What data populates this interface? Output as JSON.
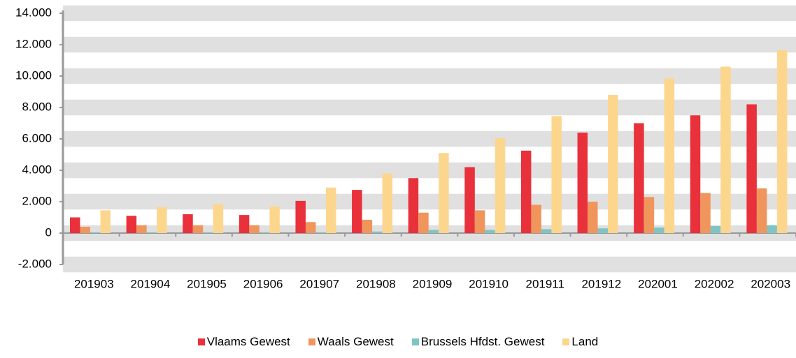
{
  "chart_data": {
    "type": "bar",
    "categories": [
      "201903",
      "201904",
      "201905",
      "201906",
      "201907",
      "201908",
      "201909",
      "201910",
      "201911",
      "201912",
      "202001",
      "202002",
      "202003"
    ],
    "series": [
      {
        "name": "Vlaams Gewest",
        "color": "#e8313a",
        "values": [
          1000,
          1100,
          1200,
          1150,
          2050,
          2750,
          3500,
          4200,
          5250,
          6400,
          7000,
          7500,
          8200
        ]
      },
      {
        "name": "Waals Gewest",
        "color": "#f0955c",
        "values": [
          400,
          500,
          500,
          500,
          700,
          850,
          1300,
          1450,
          1800,
          2000,
          2300,
          2550,
          2850
        ]
      },
      {
        "name": "Brussels Hfdst. Gewest",
        "color": "#7fc4c4",
        "values": [
          50,
          50,
          50,
          50,
          50,
          100,
          200,
          200,
          250,
          300,
          350,
          450,
          500
        ]
      },
      {
        "name": "Land",
        "color": "#fdd68e",
        "values": [
          1450,
          1650,
          1850,
          1700,
          2900,
          3800,
          5100,
          6050,
          7450,
          8800,
          9850,
          10600,
          11650
        ]
      }
    ],
    "ylim": [
      -2000,
      14000
    ],
    "yticks": [
      {
        "value": -2000,
        "label": "-2.000"
      },
      0,
      {
        "value": 2000,
        "label": "2.000"
      },
      {
        "value": 4000,
        "label": "4.000"
      },
      {
        "value": 6000,
        "label": "6.000"
      },
      {
        "value": 8000,
        "label": "8.000"
      },
      {
        "value": 10000,
        "label": "10.000"
      },
      {
        "value": 12000,
        "label": "12.000"
      },
      {
        "value": 14000,
        "label": "14.000"
      }
    ],
    "grid": true,
    "legend": "bottom"
  }
}
